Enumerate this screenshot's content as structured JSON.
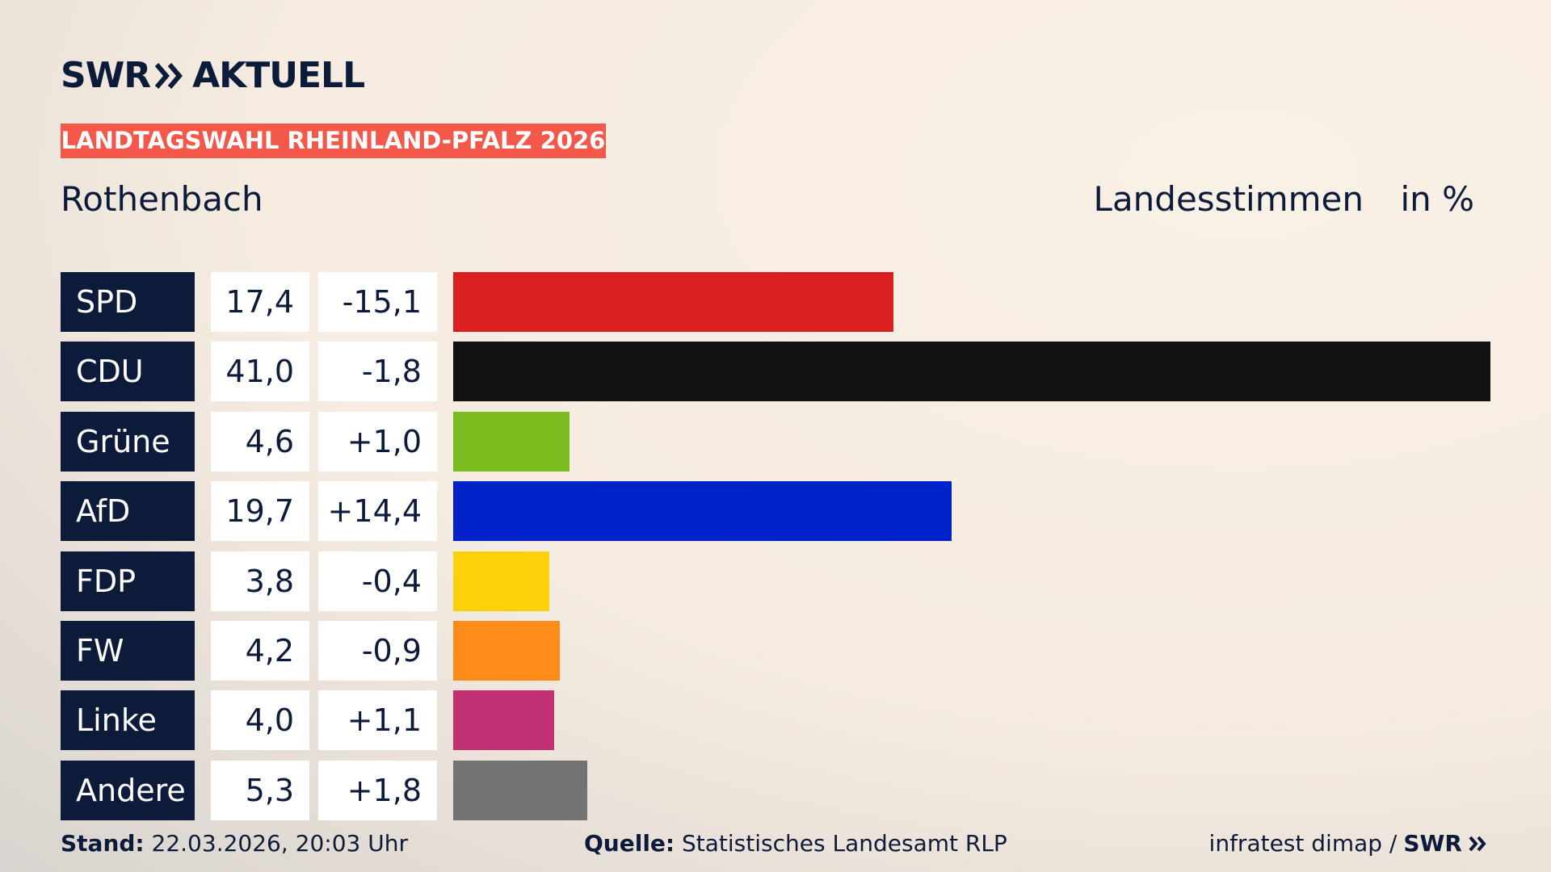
{
  "header": {
    "logo": "SWR",
    "logo_suffix": "AKTUELL",
    "badge": "LANDTAGSWAHL RHEINLAND-PFALZ 2026"
  },
  "chart_data": {
    "type": "bar",
    "orientation": "horizontal",
    "title": "Rothenbach",
    "value_header": "Landesstimmen",
    "unit_header": "in %",
    "categories": [
      "SPD",
      "CDU",
      "Grüne",
      "AfD",
      "FDP",
      "FW",
      "Linke",
      "Andere"
    ],
    "values": [
      17.4,
      41.0,
      4.6,
      19.7,
      3.8,
      4.2,
      4.0,
      5.3
    ],
    "value_labels": [
      "17,4",
      "41,0",
      "4,6",
      "19,7",
      "3,8",
      "4,2",
      "4,0",
      "5,3"
    ],
    "changes": [
      "-15,1",
      "-1,8",
      "+1,0",
      "+14,4",
      "-0,4",
      "-0,9",
      "+1,1",
      "+1,8"
    ],
    "colors": [
      "#d91f20",
      "#111111",
      "#7bbd1e",
      "#0022c8",
      "#fdd00c",
      "#ff8c19",
      "#bf3173",
      "#737373"
    ]
  },
  "footer": {
    "stand_label": "Stand:",
    "stand": "22.03.2026, 20:03 Uhr",
    "source_label": "Quelle:",
    "source": "Statistisches Landesamt RLP",
    "credit": "infratest dimap /",
    "credit_logo": "SWR"
  }
}
